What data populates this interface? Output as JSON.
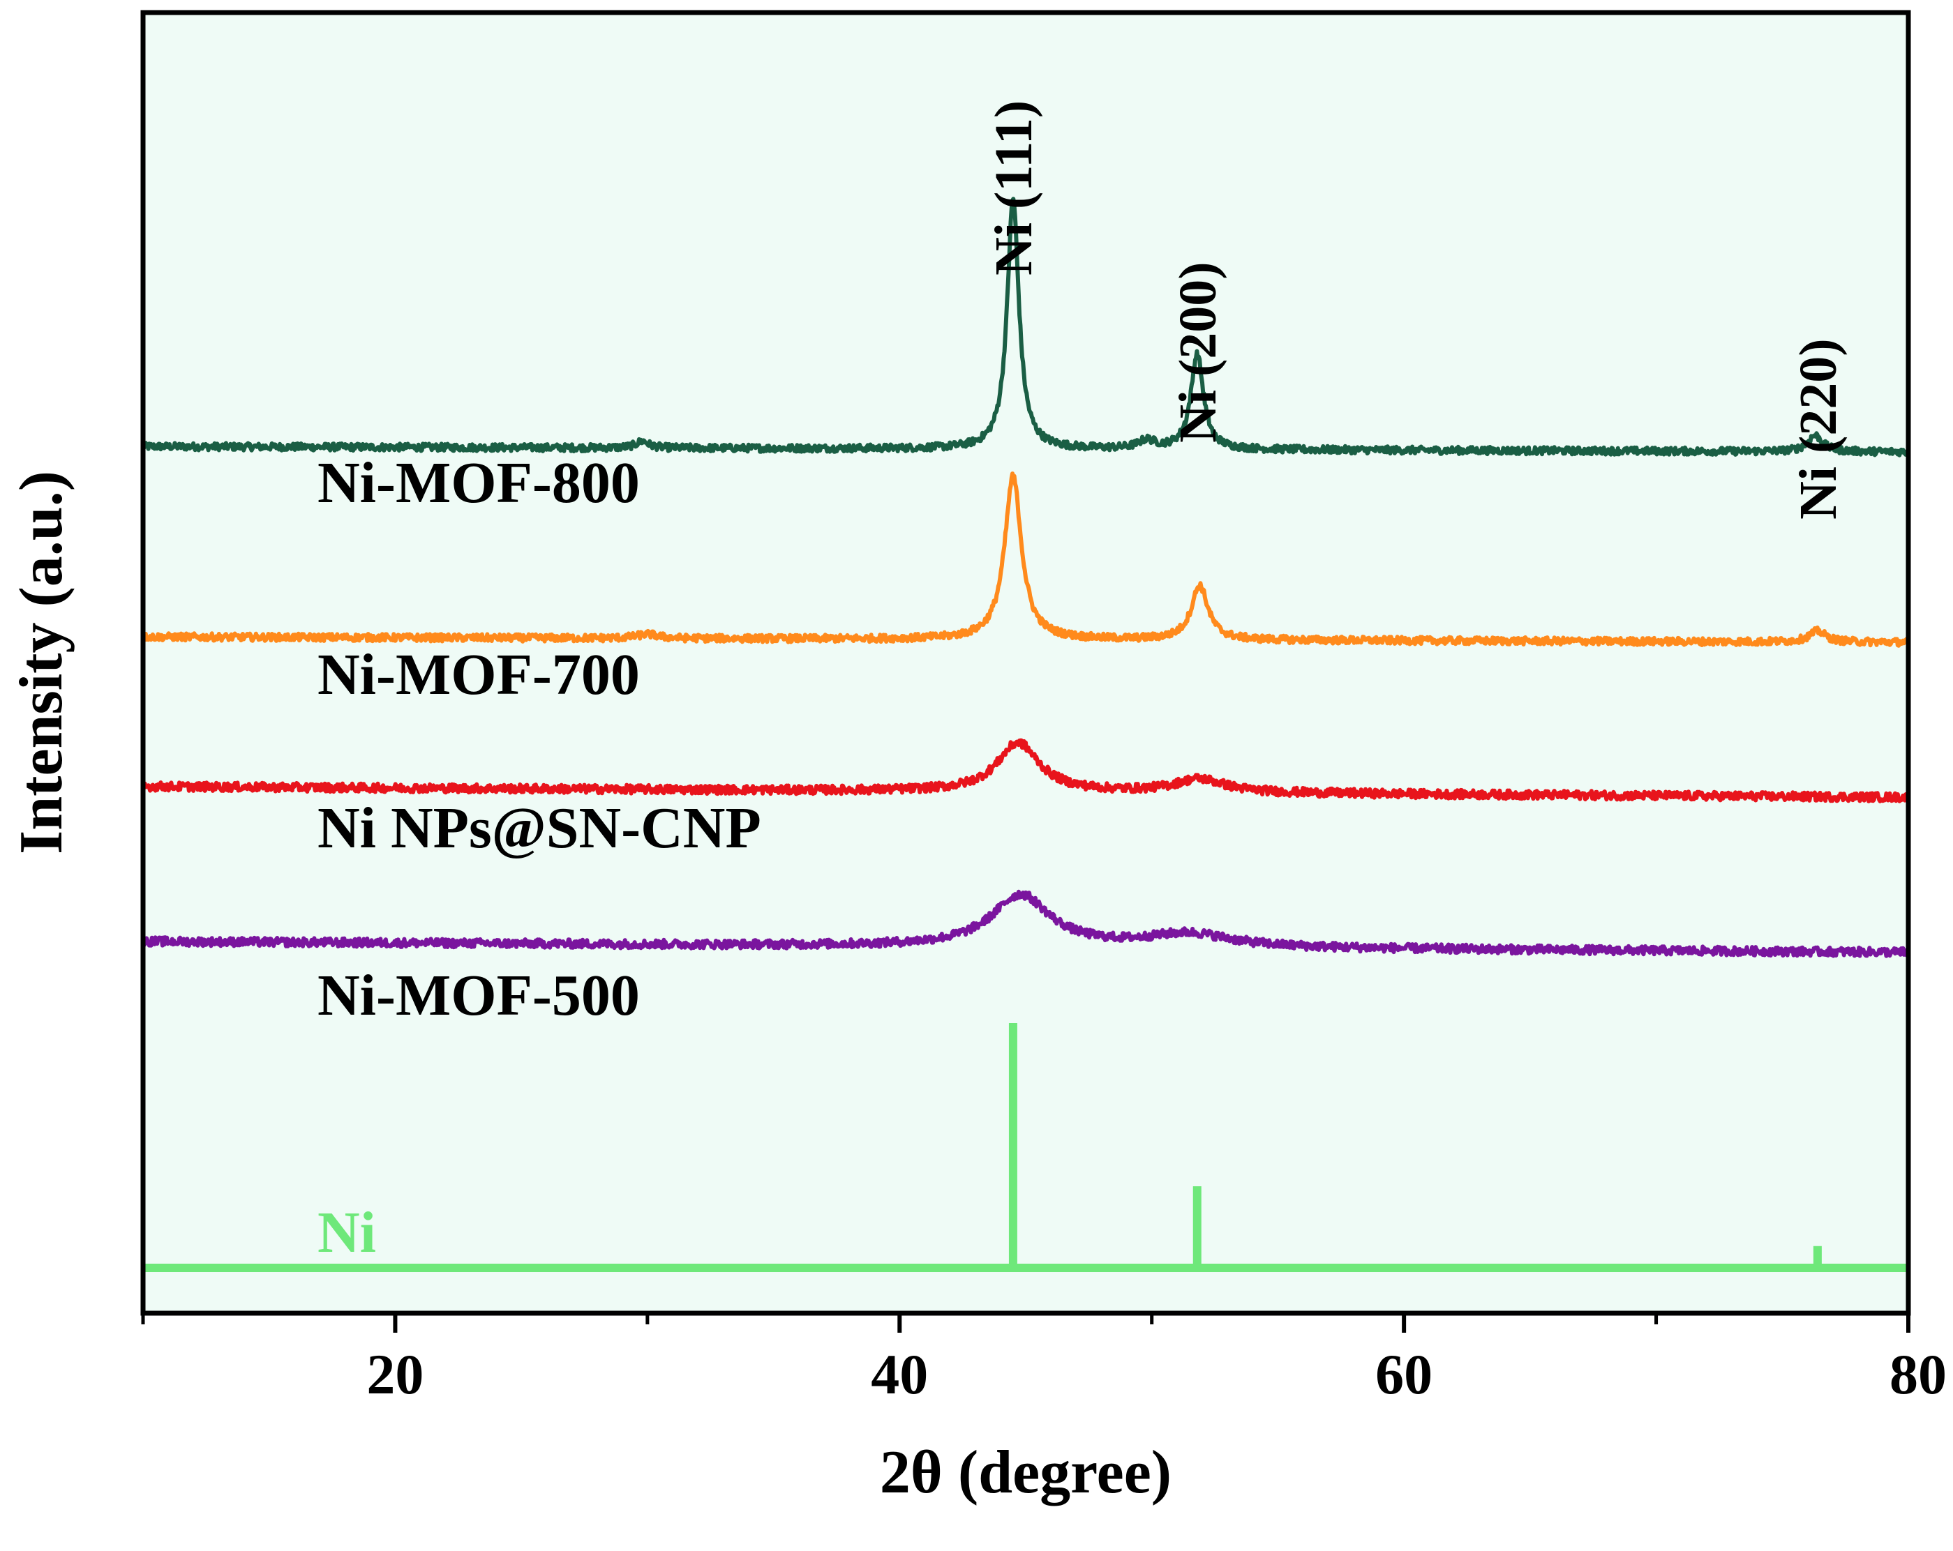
{
  "chart_data": {
    "type": "line",
    "title": "",
    "xlabel": "2θ (degree)",
    "ylabel": "Intensity (a.u.)",
    "xlim": [
      10,
      80
    ],
    "xticks": [
      {
        "value": 20,
        "label": "20"
      },
      {
        "value": 40,
        "label": "40"
      },
      {
        "value": 60,
        "label": "60"
      },
      {
        "value": 80,
        "label": "80"
      }
    ],
    "minor_xticks": [
      10,
      30,
      50,
      70
    ],
    "background_color": "#effbf6",
    "grid": false,
    "series": [
      {
        "name": "Ni-MOF-800",
        "color": "#1a5e44",
        "offset": 3.0,
        "noise": 0.012,
        "baseline": [
          [
            10,
            0.02
          ],
          [
            80,
            0.0
          ]
        ],
        "peaks": [
          {
            "center": 44.5,
            "height": 0.92,
            "width": 0.28
          },
          {
            "center": 51.8,
            "height": 0.35,
            "width": 0.3
          },
          {
            "center": 49.8,
            "height": 0.03,
            "width": 0.4
          },
          {
            "center": 29.8,
            "height": 0.025,
            "width": 0.3
          },
          {
            "center": 76.3,
            "height": 0.06,
            "width": 0.35
          }
        ]
      },
      {
        "name": "Ni-MOF-700",
        "color": "#ff8a1c",
        "offset": 2.3,
        "noise": 0.012,
        "baseline": [
          [
            10,
            0.02
          ],
          [
            80,
            0.0
          ]
        ],
        "peaks": [
          {
            "center": 44.5,
            "height": 0.6,
            "width": 0.4
          },
          {
            "center": 51.9,
            "height": 0.2,
            "width": 0.4
          },
          {
            "center": 76.4,
            "height": 0.04,
            "width": 0.4
          },
          {
            "center": 30,
            "height": 0.015,
            "width": 0.5
          }
        ]
      },
      {
        "name": "Ni NPs@SN-CNP",
        "color": "#e8141c",
        "offset": 1.75,
        "noise": 0.014,
        "baseline": [
          [
            10,
            0.02
          ],
          [
            80,
            -0.02
          ]
        ],
        "peaks": [
          {
            "center": 44.7,
            "height": 0.18,
            "width": 1.0
          },
          {
            "center": 51.9,
            "height": 0.05,
            "width": 1.2
          }
        ]
      },
      {
        "name": "Ni-MOF-500",
        "color": "#7a159e",
        "offset": 1.2,
        "noise": 0.014,
        "baseline": [
          [
            10,
            0.0
          ],
          [
            80,
            -0.04
          ]
        ],
        "peaks": [
          {
            "center": 44.8,
            "height": 0.19,
            "width": 1.4
          },
          {
            "center": 51.5,
            "height": 0.05,
            "width": 2.0
          }
        ]
      }
    ],
    "reference": {
      "name": "Ni",
      "color": "#6ee87a",
      "offset": 0.0,
      "sticks": [
        {
          "x": 44.5,
          "height": 0.9
        },
        {
          "x": 51.8,
          "height": 0.3
        },
        {
          "x": 76.4,
          "height": 0.08
        }
      ]
    },
    "peak_annotations": [
      {
        "label": "Ni (111)",
        "x": 44.5
      },
      {
        "label": "Ni (200)",
        "x": 51.8
      },
      {
        "label": "Ni (220)",
        "x": 76.4
      }
    ]
  }
}
